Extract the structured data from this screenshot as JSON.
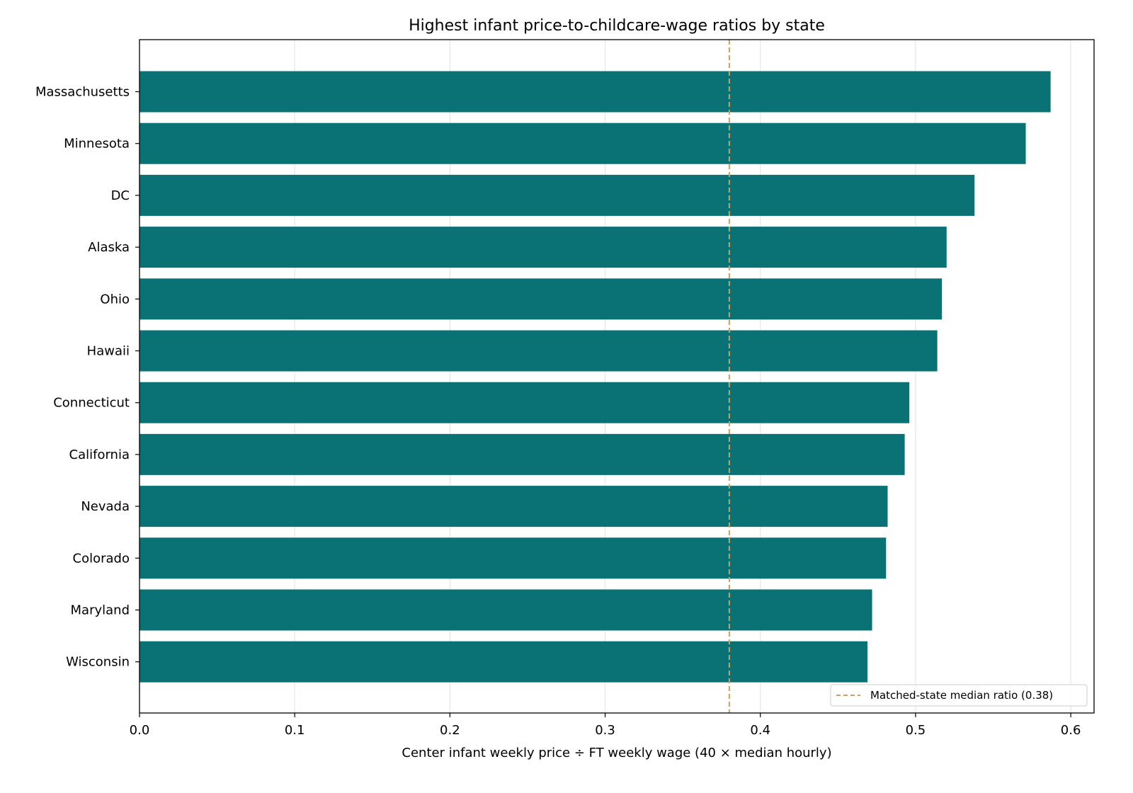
{
  "chart_data": {
    "type": "bar",
    "orientation": "horizontal",
    "title": "Highest infant price-to-childcare-wage ratios by state",
    "xlabel": "Center infant weekly price ÷ FT weekly wage (40 × median hourly)",
    "ylabel": "",
    "categories": [
      "Massachusetts",
      "Minnesota",
      "DC",
      "Alaska",
      "Ohio",
      "Hawaii",
      "Connecticut",
      "California",
      "Nevada",
      "Colorado",
      "Maryland",
      "Wisconsin"
    ],
    "values": [
      0.587,
      0.571,
      0.538,
      0.52,
      0.517,
      0.514,
      0.496,
      0.493,
      0.482,
      0.481,
      0.472,
      0.469
    ],
    "xlim": [
      0,
      0.615
    ],
    "xticks": [
      "0.0",
      "0.1",
      "0.2",
      "0.3",
      "0.4",
      "0.5",
      "0.6"
    ],
    "grid": "vertical",
    "reference_line": {
      "value": 0.38,
      "label": "Matched-state median ratio (0.38)",
      "style": "dashed"
    },
    "legend_position": "bottom-right",
    "colors": {
      "bar": "#0a7175",
      "reference": "#c9a25f",
      "grid": "#e6e6e6"
    }
  }
}
